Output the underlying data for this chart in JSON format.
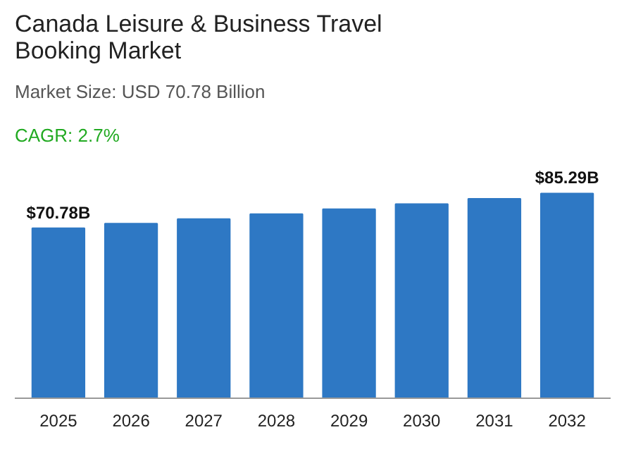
{
  "chart_data": {
    "type": "bar",
    "title": "Canada Leisure & Business Travel\nBooking Market",
    "subtitle": "Market Size: USD 70.78 Billion",
    "annotations": [
      "CAGR: 2.7%"
    ],
    "categories": [
      "2025",
      "2026",
      "2027",
      "2028",
      "2029",
      "2030",
      "2031",
      "2032"
    ],
    "values": [
      70.78,
      72.69,
      74.65,
      76.67,
      78.74,
      80.86,
      83.05,
      85.29
    ],
    "value_labels": [
      "$70.78B",
      null,
      null,
      null,
      null,
      null,
      null,
      "$85.29B"
    ],
    "color": "#2e78c4",
    "grid": false
  }
}
